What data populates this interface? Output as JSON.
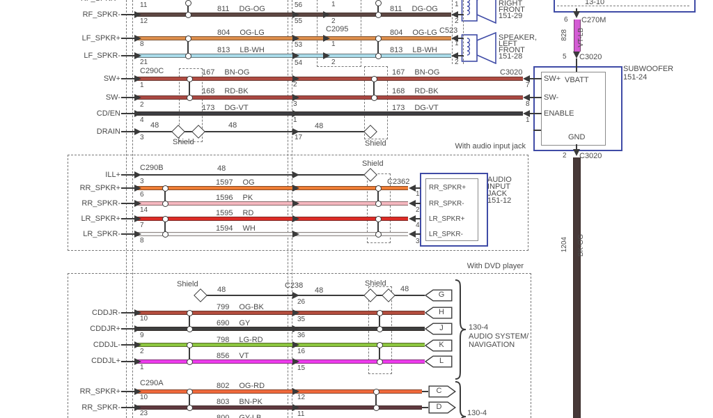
{
  "palette": {
    "diagram_blue": "#3f4ba6",
    "line": "#3a3a3a",
    "text": "#4a4a4a",
    "wire": {
      "dg_og": "#5e4743",
      "og_lg": "#dd8f4c",
      "lb_wh": "#aadcea",
      "bn_og": "#b04c42",
      "rd_bk": "#aa4843",
      "dg_vt": "#3e3e42",
      "og": "#ee7d35",
      "pk": "#f5b8c0",
      "rd": "#dd2c27",
      "wh": "#f4f4f4",
      "og_bk": "#b34d3e",
      "gy": "#3f3f3f",
      "lg_rd": "#8cc63f",
      "vt": "#ee3bee",
      "og_rd": "#f06a3c",
      "bn_pk": "#603a40",
      "vt_lb": "#d45cd4",
      "bk_og": "#473938"
    }
  },
  "top": {
    "connector_mid": "C2095",
    "connector_left_front": "C523",
    "rows": [
      {
        "label": "RF_SPKR+",
        "pin": "11",
        "mid_pin": "56",
        "c2095_pin": "1",
        "spk_pin": "1"
      },
      {
        "label": "RF_SPKR-",
        "pin": "12",
        "circuit": "811",
        "code": "DG-OG",
        "mid_pin": "55",
        "c2095_pin": "2",
        "spk_pin": "2"
      },
      {
        "label": "LF_SPKR+",
        "pin": "8",
        "circuit": "804",
        "code": "OG-LG",
        "mid_pin": "53",
        "c2095_pin": "1",
        "spk_pin": "1"
      },
      {
        "label": "LF_SPKR-",
        "pin": "21",
        "circuit": "813",
        "code": "LB-WH",
        "mid_pin": "54",
        "c2095_pin": "2",
        "spk_pin": "2"
      }
    ],
    "speaker_right_front": {
      "l1": "RIGHT",
      "l2": "FRONT",
      "l3": "151-29"
    },
    "speaker_left_front": {
      "l1": "SPEAKER,",
      "l2": "LEFT",
      "l3": "FRONT",
      "l4": "151-28"
    }
  },
  "sw": {
    "connector": "C290C",
    "connector_right": "C3020",
    "rows": [
      {
        "label": "SW+",
        "pin": "1",
        "circuit": "167",
        "code": "BN-OG",
        "mid_pin": "2",
        "sub_pin": "7"
      },
      {
        "label": "SW-",
        "pin": "2",
        "circuit": "168",
        "code": "RD-BK",
        "mid_pin": "3",
        "sub_pin": "8"
      },
      {
        "label": "CD/EN",
        "pin": "4",
        "circuit": "173",
        "code": "DG-VT",
        "mid_pin": "1",
        "sub_pin": "1"
      },
      {
        "label": "DRAIN",
        "pin": "3",
        "circuit": "48",
        "circuit2": "48",
        "circuit3": "48",
        "mid_pin": "17",
        "shield": "Shield",
        "shield2": "Shield"
      }
    ]
  },
  "subwoofer": {
    "title": "SUBWOOFER",
    "ref": "151-24",
    "pins": {
      "swp": "SW+",
      "vbatt": "VBATT",
      "swm": "SW-",
      "enable": "ENABLE",
      "gnd": "GND"
    },
    "above": {
      "box_ref": "13-10",
      "pin6": "6",
      "connector": "C270M",
      "circuit": "828",
      "code": "VT-LB",
      "pin5": "5",
      "connector2": "C3020"
    },
    "below": {
      "pin": "2",
      "connector": "C3020",
      "circuit": "1204",
      "code": "BK-OG"
    }
  },
  "audio_jack": {
    "caption": "With audio input jack",
    "connector": "C290B",
    "connector_right": "C2362",
    "ill_row": {
      "label": "ILL+",
      "pin": "3",
      "circuit": "48",
      "shield": "Shield"
    },
    "rows": [
      {
        "label": "RR_SPKR+",
        "pin": "6",
        "circuit": "1597",
        "code": "OG",
        "jack_pin": "1",
        "box_label": "RR_SPKR+"
      },
      {
        "label": "RR_SPKR-",
        "pin": "14",
        "circuit": "1596",
        "code": "PK",
        "jack_pin": "2",
        "box_label": "RR_SPKR-"
      },
      {
        "label": "LR_SPKR+",
        "pin": "7",
        "circuit": "1595",
        "code": "RD",
        "jack_pin": "4",
        "box_label": "LR_SPKR+"
      },
      {
        "label": "LR_SPKR-",
        "pin": "8",
        "circuit": "1594",
        "code": "WH",
        "jack_pin": "3",
        "box_label": "LR_SPKR-"
      }
    ],
    "box_title": {
      "l1": "AUDIO",
      "l2": "INPUT",
      "l3": "JACK",
      "l4": "151-12"
    }
  },
  "dvd": {
    "caption": "With DVD player",
    "connector2": "C290A",
    "shield_row": {
      "shield": "Shield",
      "circuit": "48",
      "connector": "C238",
      "mid_pin": "26",
      "shield2": "Shield",
      "circuit2": "48",
      "circuit3": "48",
      "tag": "G"
    },
    "rows": [
      {
        "label": "CDDJR-",
        "pin": "10",
        "circuit": "799",
        "code": "OG-BK",
        "mid_pin": "35",
        "tag": "H"
      },
      {
        "label": "CDDJR+",
        "pin": "9",
        "circuit": "690",
        "code": "GY",
        "mid_pin": "36",
        "tag": "J"
      },
      {
        "label": "CDDJL-",
        "pin": "2",
        "circuit": "798",
        "code": "LG-RD",
        "mid_pin": "16",
        "tag": "K"
      },
      {
        "label": "CDDJL+",
        "pin": "1",
        "circuit": "856",
        "code": "VT",
        "mid_pin": "15",
        "tag": "L"
      }
    ],
    "system_label": {
      "ref": "130-4",
      "l1": "AUDIO SYSTEM/",
      "l2": "NAVIGATION"
    },
    "rows2": [
      {
        "label": "RR_SPKR+",
        "pin": "10",
        "circuit": "802",
        "code": "OG-RD",
        "mid_pin": "12",
        "tag": "C"
      },
      {
        "label": "RR_SPKR-",
        "pin": "23",
        "circuit": "803",
        "code": "BN-PK",
        "mid_pin": "11",
        "tag": "D"
      }
    ],
    "system_label2": "130-4",
    "partial_row": {
      "circuit": "800",
      "code": "GY-LB"
    }
  }
}
